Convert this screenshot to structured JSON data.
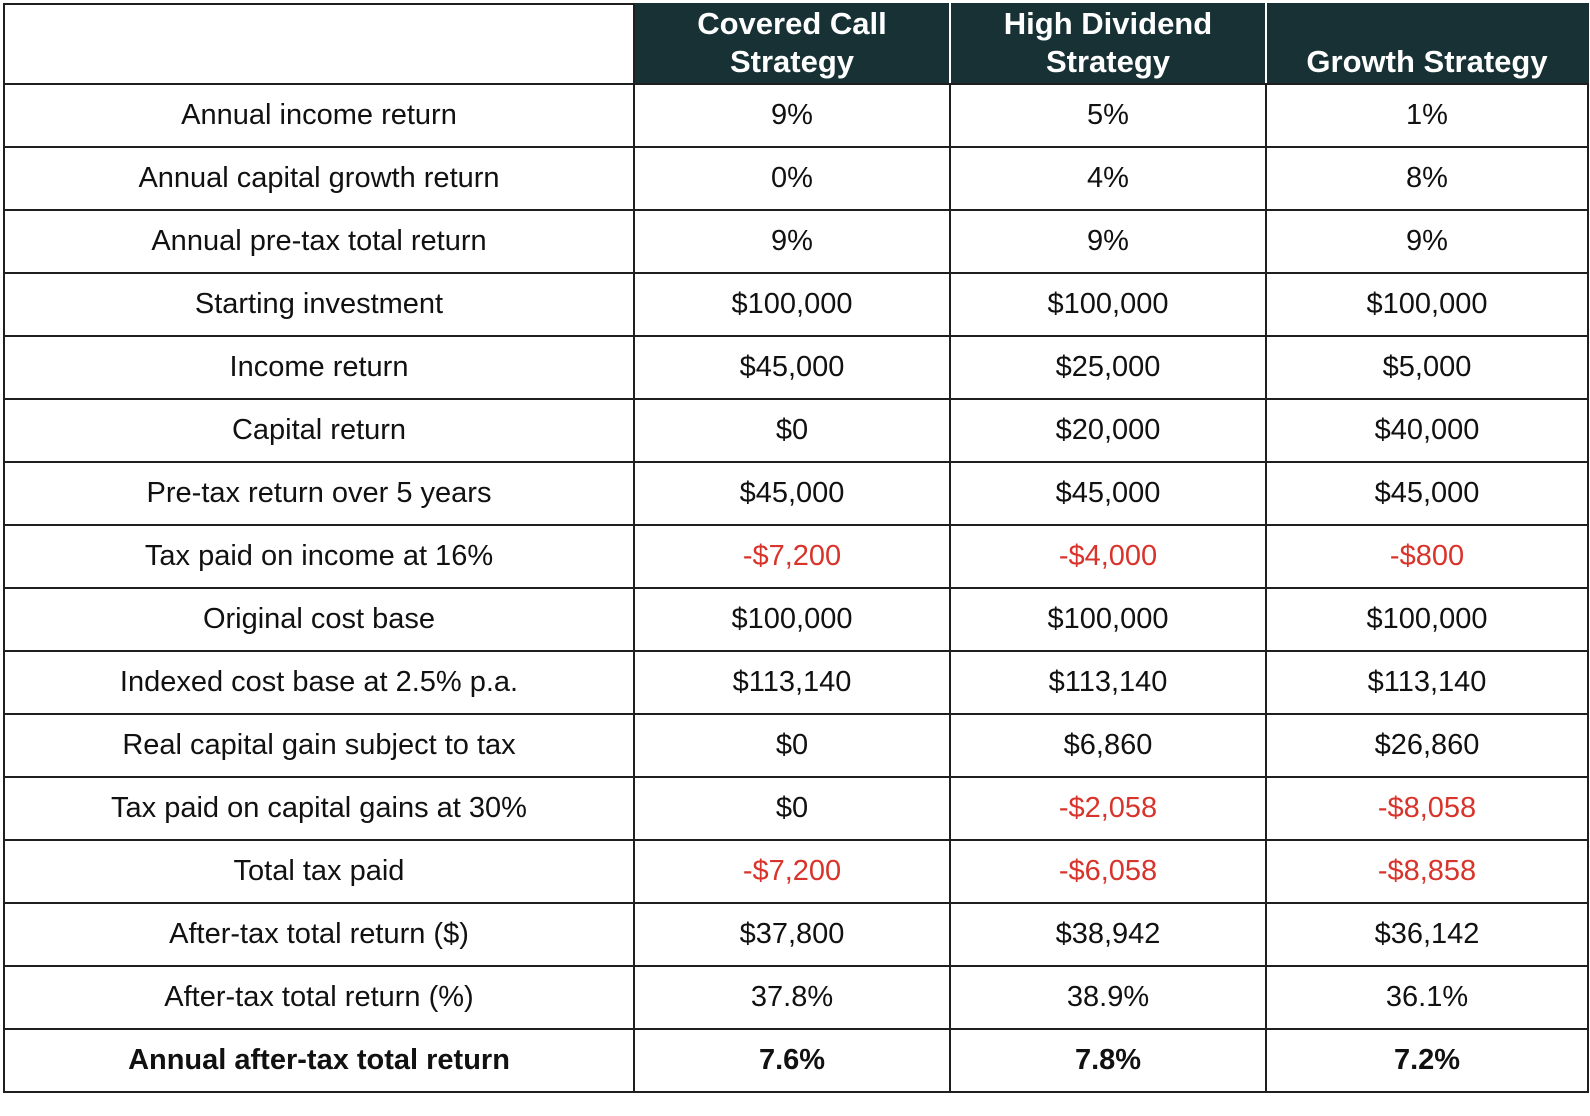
{
  "table": {
    "headers": [
      "",
      "Covered Call\nStrategy",
      "High Dividend\nStrategy",
      "Growth Strategy"
    ],
    "header_lines": [
      [],
      [
        "Covered Call",
        "Strategy"
      ],
      [
        "High Dividend",
        "Strategy"
      ],
      [
        "Growth Strategy"
      ]
    ],
    "rows": [
      {
        "label": "Annual income return",
        "values": [
          "9%",
          "5%",
          "1%"
        ],
        "negative": [
          false,
          false,
          false
        ],
        "bold": false
      },
      {
        "label": "Annual capital growth return",
        "values": [
          "0%",
          "4%",
          "8%"
        ],
        "negative": [
          false,
          false,
          false
        ],
        "bold": false
      },
      {
        "label": "Annual pre-tax total return",
        "values": [
          "9%",
          "9%",
          "9%"
        ],
        "negative": [
          false,
          false,
          false
        ],
        "bold": false
      },
      {
        "label": "Starting investment",
        "values": [
          "$100,000",
          "$100,000",
          "$100,000"
        ],
        "negative": [
          false,
          false,
          false
        ],
        "bold": false
      },
      {
        "label": "Income return",
        "values": [
          "$45,000",
          "$25,000",
          "$5,000"
        ],
        "negative": [
          false,
          false,
          false
        ],
        "bold": false
      },
      {
        "label": "Capital return",
        "values": [
          "$0",
          "$20,000",
          "$40,000"
        ],
        "negative": [
          false,
          false,
          false
        ],
        "bold": false
      },
      {
        "label": "Pre-tax return over 5 years",
        "values": [
          "$45,000",
          "$45,000",
          "$45,000"
        ],
        "negative": [
          false,
          false,
          false
        ],
        "bold": false
      },
      {
        "label": "Tax paid on income at 16%",
        "values": [
          "-$7,200",
          "-$4,000",
          "-$800"
        ],
        "negative": [
          true,
          true,
          true
        ],
        "bold": false
      },
      {
        "label": "Original cost base",
        "values": [
          "$100,000",
          "$100,000",
          "$100,000"
        ],
        "negative": [
          false,
          false,
          false
        ],
        "bold": false
      },
      {
        "label": "Indexed cost base at 2.5% p.a.",
        "values": [
          "$113,140",
          "$113,140",
          "$113,140"
        ],
        "negative": [
          false,
          false,
          false
        ],
        "bold": false
      },
      {
        "label": "Real capital gain subject to tax",
        "values": [
          "$0",
          "$6,860",
          "$26,860"
        ],
        "negative": [
          false,
          false,
          false
        ],
        "bold": false
      },
      {
        "label": "Tax paid on capital gains at 30%",
        "values": [
          "$0",
          "-$2,058",
          "-$8,058"
        ],
        "negative": [
          false,
          true,
          true
        ],
        "bold": false
      },
      {
        "label": "Total tax paid",
        "values": [
          "-$7,200",
          "-$6,058",
          "-$8,858"
        ],
        "negative": [
          true,
          true,
          true
        ],
        "bold": false
      },
      {
        "label": "After-tax total return ($)",
        "values": [
          "$37,800",
          "$38,942",
          "$36,142"
        ],
        "negative": [
          false,
          false,
          false
        ],
        "bold": false
      },
      {
        "label": "After-tax total return (%)",
        "values": [
          "37.8%",
          "38.9%",
          "36.1%"
        ],
        "negative": [
          false,
          false,
          false
        ],
        "bold": false
      },
      {
        "label": "Annual after-tax total return",
        "values": [
          "7.6%",
          "7.8%",
          "7.2%"
        ],
        "negative": [
          false,
          false,
          false
        ],
        "bold": true
      }
    ]
  },
  "colors": {
    "header_background": "#183134",
    "header_text": "#ffffff",
    "negative_value": "#d8342b",
    "text": "#111111",
    "grid": "#1f1f1f"
  }
}
